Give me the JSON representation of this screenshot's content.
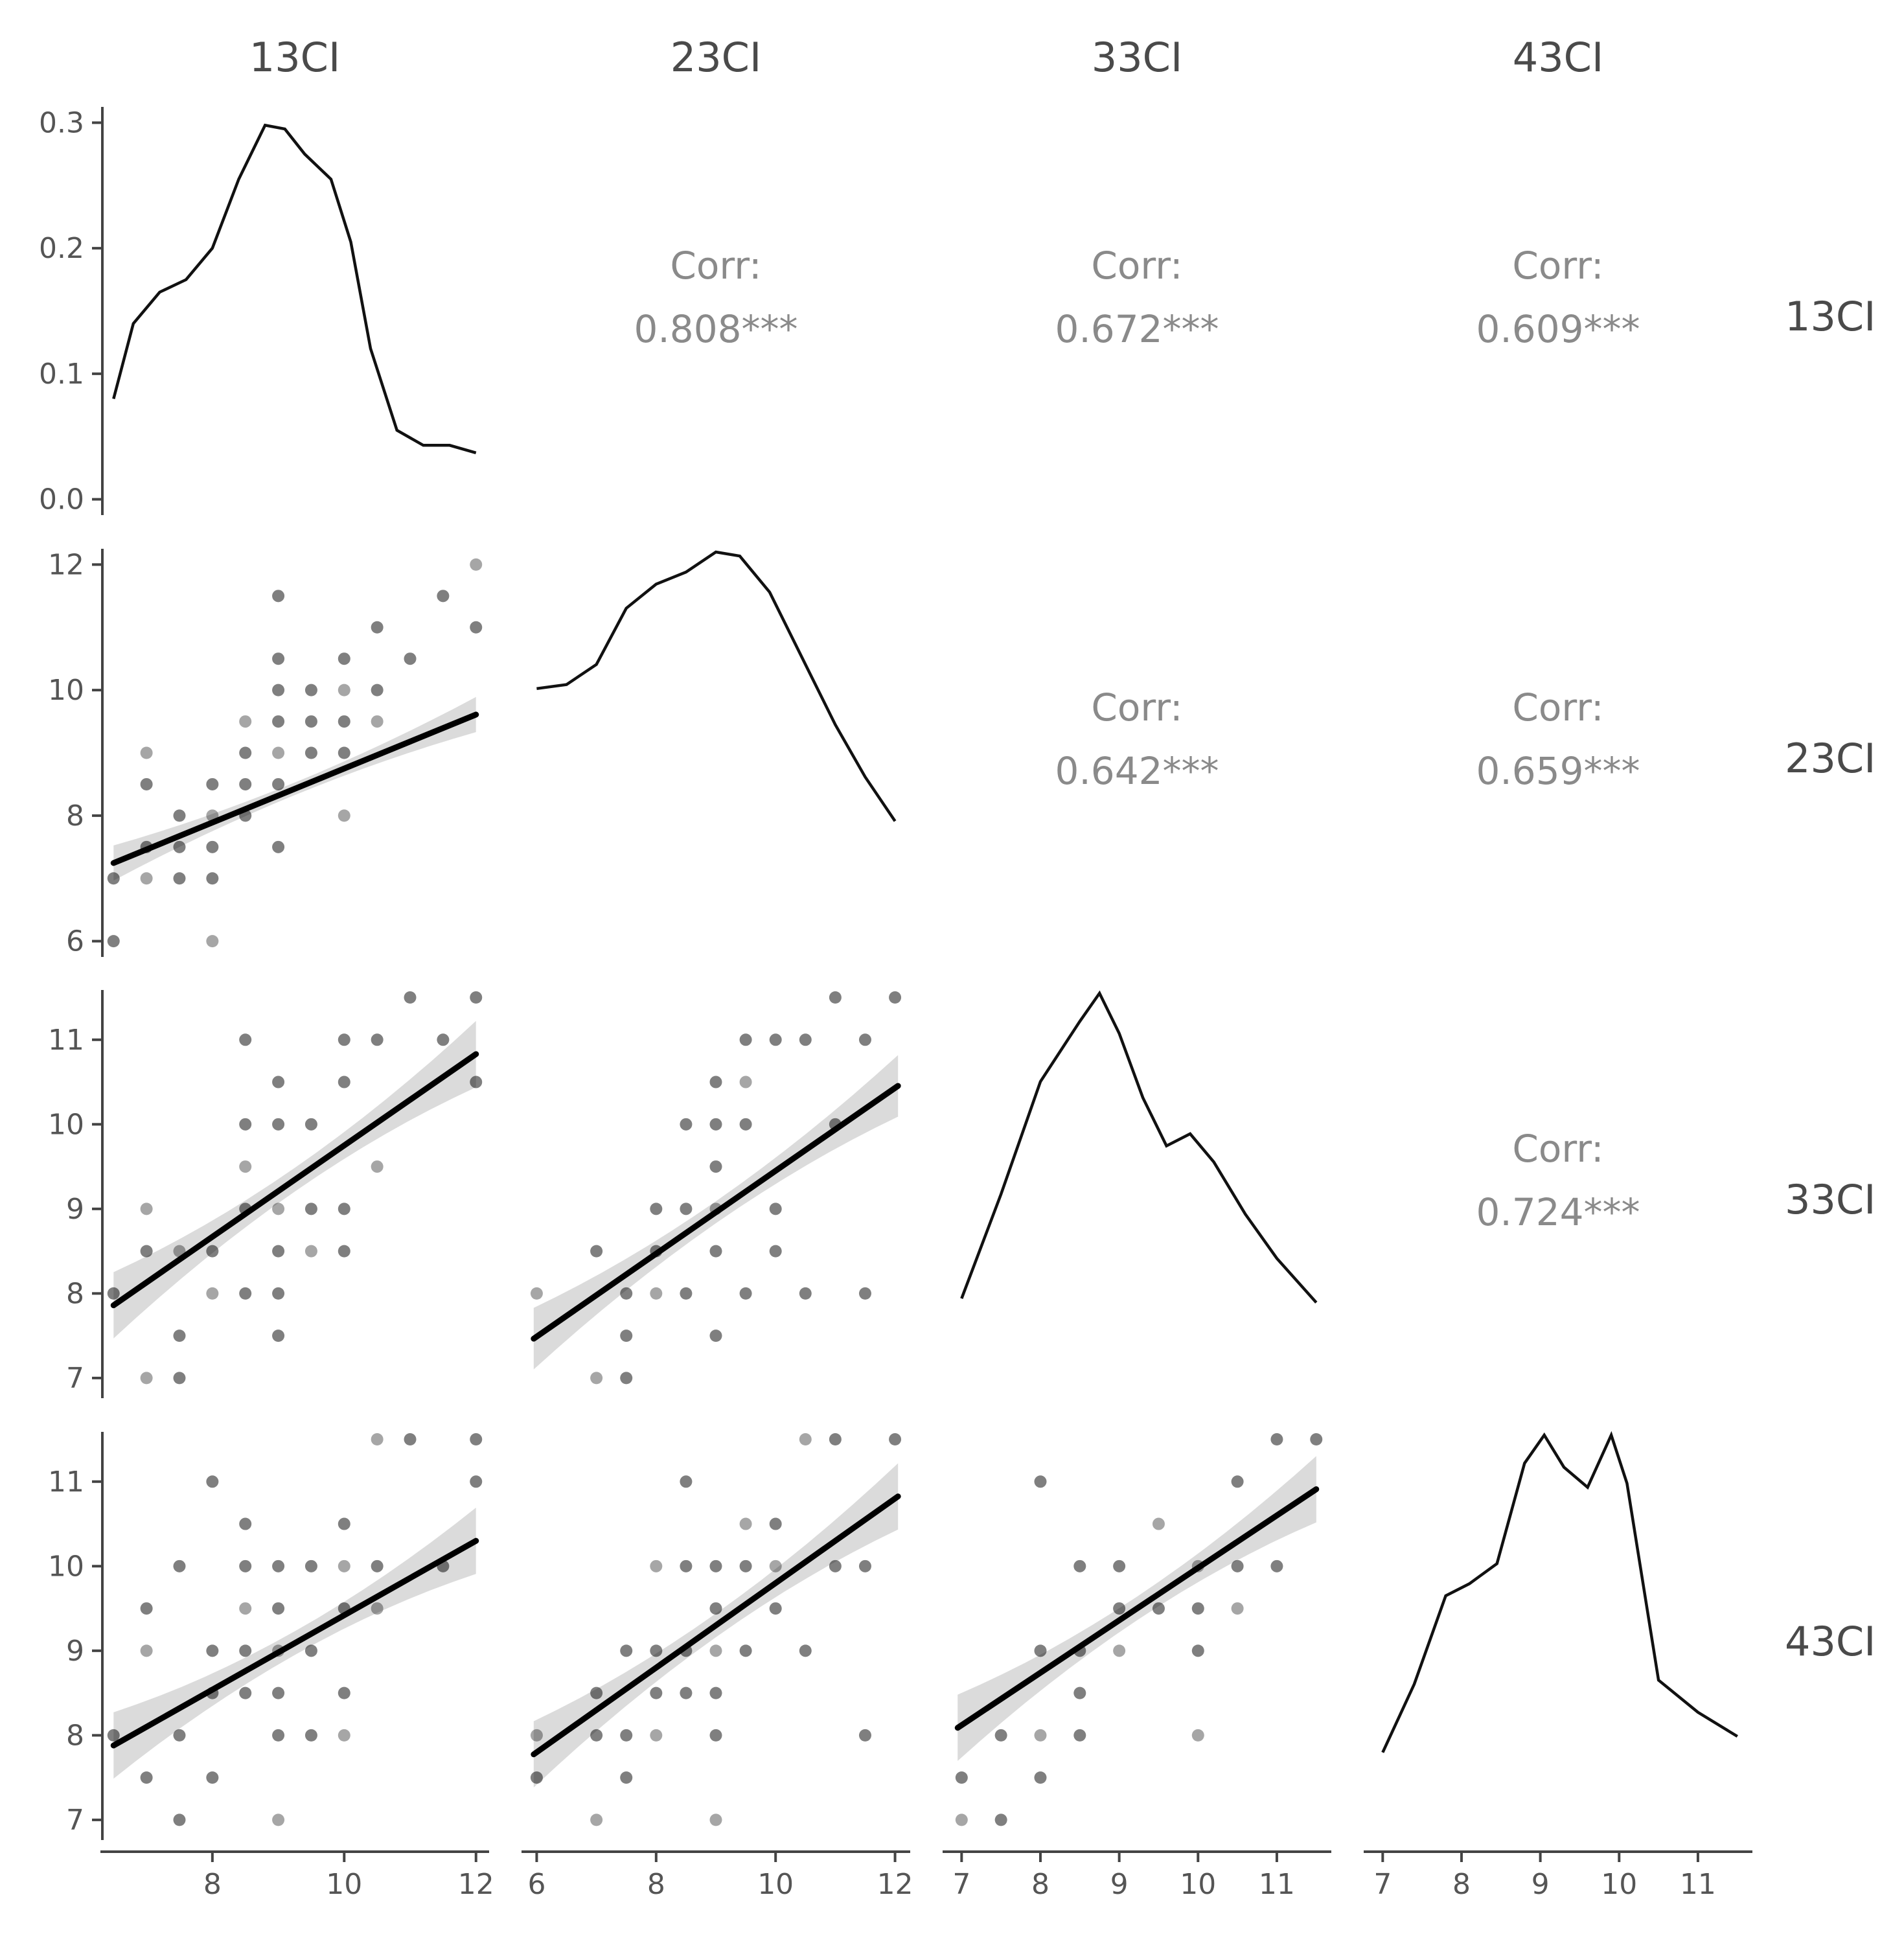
{
  "chart_data": {
    "type": "scatter-matrix",
    "variables": [
      "13CI",
      "23CI",
      "33CI",
      "43CI"
    ],
    "corr_label": "Corr:",
    "correlations": [
      {
        "row": 0,
        "col": 1,
        "value": "0.808***"
      },
      {
        "row": 0,
        "col": 2,
        "value": "0.672***"
      },
      {
        "row": 0,
        "col": 3,
        "value": "0.609***"
      },
      {
        "row": 1,
        "col": 2,
        "value": "0.642***"
      },
      {
        "row": 1,
        "col": 3,
        "value": "0.659***"
      },
      {
        "row": 2,
        "col": 3,
        "value": "0.724***"
      }
    ],
    "x_ranges": [
      [
        6.35,
        12.15
      ],
      [
        5.8,
        12.2
      ],
      [
        6.8,
        11.65
      ],
      [
        6.8,
        11.65
      ]
    ],
    "y_ranges": [
      [
        -0.01,
        0.31
      ],
      [
        5.8,
        12.2
      ],
      [
        6.8,
        11.55
      ],
      [
        6.8,
        11.55
      ]
    ],
    "x_ticks": [
      [
        "8",
        "10",
        "12"
      ],
      [
        "6",
        "8",
        "10",
        "12"
      ],
      [
        "7",
        "8",
        "9",
        "10",
        "11"
      ],
      [
        "7",
        "8",
        "9",
        "10",
        "11"
      ]
    ],
    "y_ticks": [
      [
        "0.0",
        "0.1",
        "0.2",
        "0.3"
      ],
      [
        "6",
        "8",
        "10",
        "12"
      ],
      [
        "7",
        "8",
        "9",
        "10",
        "11"
      ],
      [
        "7",
        "8",
        "9",
        "10",
        "11"
      ]
    ],
    "densities": [
      [
        [
          6.5,
          0.08
        ],
        [
          6.8,
          0.14
        ],
        [
          7.2,
          0.165
        ],
        [
          7.6,
          0.175
        ],
        [
          8.0,
          0.2
        ],
        [
          8.4,
          0.255
        ],
        [
          8.8,
          0.298
        ],
        [
          9.1,
          0.295
        ],
        [
          9.4,
          0.275
        ],
        [
          9.8,
          0.255
        ],
        [
          10.1,
          0.205
        ],
        [
          10.4,
          0.12
        ],
        [
          10.8,
          0.055
        ],
        [
          11.2,
          0.043
        ],
        [
          11.6,
          0.043
        ],
        [
          12.0,
          0.037
        ]
      ],
      [
        [
          6.0,
          0.66
        ],
        [
          6.5,
          0.67
        ],
        [
          7.0,
          0.72
        ],
        [
          7.5,
          0.86
        ],
        [
          8.0,
          0.92
        ],
        [
          8.5,
          0.95
        ],
        [
          9.0,
          1.0
        ],
        [
          9.4,
          0.99
        ],
        [
          9.9,
          0.9
        ],
        [
          10.5,
          0.72
        ],
        [
          11.0,
          0.57
        ],
        [
          11.5,
          0.44
        ],
        [
          12.0,
          0.33
        ]
      ],
      [
        [
          7.0,
          0.24
        ],
        [
          7.5,
          0.5
        ],
        [
          8.0,
          0.78
        ],
        [
          8.5,
          0.93
        ],
        [
          8.75,
          1.0
        ],
        [
          9.0,
          0.9
        ],
        [
          9.3,
          0.74
        ],
        [
          9.6,
          0.62
        ],
        [
          9.9,
          0.65
        ],
        [
          10.2,
          0.58
        ],
        [
          10.6,
          0.45
        ],
        [
          11.0,
          0.34
        ],
        [
          11.5,
          0.23
        ]
      ],
      [
        [
          7.0,
          0.21
        ],
        [
          7.4,
          0.38
        ],
        [
          7.8,
          0.6
        ],
        [
          8.1,
          0.63
        ],
        [
          8.45,
          0.68
        ],
        [
          8.8,
          0.93
        ],
        [
          9.05,
          1.0
        ],
        [
          9.3,
          0.92
        ],
        [
          9.6,
          0.87
        ],
        [
          9.9,
          1.0
        ],
        [
          10.1,
          0.88
        ],
        [
          10.5,
          0.39
        ],
        [
          11.0,
          0.31
        ],
        [
          11.5,
          0.25
        ]
      ]
    ],
    "scatter": {
      "1-0": [
        [
          6.5,
          6
        ],
        [
          6.5,
          7
        ],
        [
          7,
          8.5
        ],
        [
          7,
          9
        ],
        [
          7,
          7.5
        ],
        [
          7.5,
          7.5
        ],
        [
          7.5,
          8
        ],
        [
          7.5,
          7
        ],
        [
          8,
          7
        ],
        [
          8,
          6
        ],
        [
          8,
          7.5
        ],
        [
          8,
          8
        ],
        [
          8,
          8.5
        ],
        [
          8.5,
          8.5
        ],
        [
          8.5,
          9
        ],
        [
          8.5,
          9.5
        ],
        [
          8.5,
          8
        ],
        [
          9,
          9
        ],
        [
          9,
          9.5
        ],
        [
          9,
          10
        ],
        [
          9,
          10.5
        ],
        [
          9,
          11.5
        ],
        [
          9,
          8.5
        ],
        [
          9,
          7.5
        ],
        [
          9.5,
          9
        ],
        [
          9.5,
          9.5
        ],
        [
          9.5,
          10
        ],
        [
          10,
          9.5
        ],
        [
          10,
          10
        ],
        [
          10,
          10.5
        ],
        [
          10,
          9
        ],
        [
          10,
          8
        ],
        [
          10.5,
          9.5
        ],
        [
          10.5,
          11
        ],
        [
          10.5,
          10
        ],
        [
          11,
          10.5
        ],
        [
          11.5,
          11.5
        ],
        [
          12,
          11
        ],
        [
          12,
          12
        ],
        [
          7,
          7
        ]
      ],
      "2-0": [
        [
          6.5,
          8
        ],
        [
          7,
          9
        ],
        [
          7,
          8.5
        ],
        [
          7,
          7
        ],
        [
          7.5,
          8.5
        ],
        [
          7.5,
          7.5
        ],
        [
          7.5,
          7
        ],
        [
          8,
          8
        ],
        [
          8,
          8.5
        ],
        [
          8.5,
          9
        ],
        [
          8.5,
          10
        ],
        [
          8.5,
          11
        ],
        [
          8.5,
          9.5
        ],
        [
          8.5,
          8
        ],
        [
          9,
          10
        ],
        [
          9,
          9
        ],
        [
          9,
          8.5
        ],
        [
          9,
          8
        ],
        [
          9,
          7.5
        ],
        [
          9,
          10.5
        ],
        [
          9.5,
          9
        ],
        [
          9.5,
          8.5
        ],
        [
          9.5,
          10
        ],
        [
          10,
          10.5
        ],
        [
          10,
          11
        ],
        [
          10,
          9
        ],
        [
          10,
          8.5
        ],
        [
          10.5,
          9.5
        ],
        [
          10.5,
          11
        ],
        [
          11,
          11.5
        ],
        [
          11.5,
          11
        ],
        [
          12,
          11.5
        ],
        [
          12,
          10.5
        ]
      ],
      "2-1": [
        [
          6,
          8
        ],
        [
          7,
          8.5
        ],
        [
          7,
          7
        ],
        [
          7.5,
          7
        ],
        [
          7.5,
          7.5
        ],
        [
          7.5,
          8
        ],
        [
          8,
          9
        ],
        [
          8,
          8.5
        ],
        [
          8.5,
          10
        ],
        [
          8.5,
          9
        ],
        [
          8.5,
          8
        ],
        [
          9,
          10
        ],
        [
          9,
          10.5
        ],
        [
          9,
          9.5
        ],
        [
          9,
          8.5
        ],
        [
          9,
          7.5
        ],
        [
          9.5,
          10
        ],
        [
          9.5,
          10.5
        ],
        [
          9.5,
          11
        ],
        [
          9.5,
          8
        ],
        [
          10,
          9
        ],
        [
          10,
          8.5
        ],
        [
          10,
          11
        ],
        [
          10.5,
          11
        ],
        [
          10.5,
          8
        ],
        [
          11,
          10
        ],
        [
          11,
          11.5
        ],
        [
          11.5,
          11
        ],
        [
          11.5,
          8
        ],
        [
          12,
          11.5
        ],
        [
          9,
          9
        ],
        [
          8,
          8
        ]
      ],
      "3-0": [
        [
          6.5,
          8
        ],
        [
          7,
          9
        ],
        [
          7,
          9.5
        ],
        [
          7,
          7.5
        ],
        [
          7.5,
          8
        ],
        [
          7.5,
          10
        ],
        [
          7.5,
          7
        ],
        [
          8,
          9
        ],
        [
          8,
          11
        ],
        [
          8,
          8.5
        ],
        [
          8,
          7.5
        ],
        [
          8.5,
          9
        ],
        [
          8.5,
          9.5
        ],
        [
          8.5,
          10
        ],
        [
          8.5,
          10.5
        ],
        [
          8.5,
          8.5
        ],
        [
          9,
          9
        ],
        [
          9,
          9.5
        ],
        [
          9,
          10
        ],
        [
          9,
          8.5
        ],
        [
          9,
          8
        ],
        [
          9,
          7
        ],
        [
          9.5,
          9
        ],
        [
          9.5,
          10
        ],
        [
          9.5,
          8
        ],
        [
          10,
          10
        ],
        [
          10,
          9.5
        ],
        [
          10,
          10.5
        ],
        [
          10,
          8.5
        ],
        [
          10,
          8
        ],
        [
          10.5,
          9.5
        ],
        [
          10.5,
          10
        ],
        [
          10.5,
          11.5
        ],
        [
          11,
          11.5
        ],
        [
          11.5,
          10
        ],
        [
          12,
          11
        ],
        [
          12,
          11.5
        ]
      ],
      "3-1": [
        [
          6,
          7.5
        ],
        [
          6,
          8
        ],
        [
          7,
          7
        ],
        [
          7,
          8.5
        ],
        [
          7.5,
          8
        ],
        [
          7.5,
          9
        ],
        [
          7.5,
          7.5
        ],
        [
          8,
          8
        ],
        [
          8,
          9
        ],
        [
          8,
          8.5
        ],
        [
          8,
          10
        ],
        [
          8.5,
          9
        ],
        [
          8.5,
          10
        ],
        [
          8.5,
          11
        ],
        [
          8.5,
          8.5
        ],
        [
          9,
          9
        ],
        [
          9,
          9.5
        ],
        [
          9,
          10
        ],
        [
          9,
          8.5
        ],
        [
          9,
          8
        ],
        [
          9,
          7
        ],
        [
          9.5,
          10
        ],
        [
          9.5,
          9
        ],
        [
          9.5,
          10.5
        ],
        [
          10,
          10
        ],
        [
          10,
          9.5
        ],
        [
          10,
          10.5
        ],
        [
          10.5,
          9
        ],
        [
          10.5,
          11.5
        ],
        [
          11,
          11.5
        ],
        [
          11,
          10
        ],
        [
          11.5,
          10
        ],
        [
          11.5,
          8
        ],
        [
          12,
          11.5
        ],
        [
          7,
          8
        ]
      ],
      "3-2": [
        [
          7,
          7.5
        ],
        [
          7,
          7
        ],
        [
          7.5,
          8
        ],
        [
          7.5,
          7
        ],
        [
          8,
          9
        ],
        [
          8,
          8
        ],
        [
          8,
          7.5
        ],
        [
          8,
          11
        ],
        [
          8.5,
          10
        ],
        [
          8.5,
          9
        ],
        [
          8.5,
          8.5
        ],
        [
          8.5,
          8
        ],
        [
          9,
          9
        ],
        [
          9,
          9.5
        ],
        [
          9,
          10
        ],
        [
          9.5,
          9.5
        ],
        [
          9.5,
          10.5
        ],
        [
          10,
          10
        ],
        [
          10,
          9
        ],
        [
          10,
          9.5
        ],
        [
          10,
          8
        ],
        [
          10.5,
          9.5
        ],
        [
          10.5,
          10
        ],
        [
          10.5,
          11
        ],
        [
          11,
          10
        ],
        [
          11,
          11.5
        ],
        [
          11.5,
          11.5
        ]
      ]
    },
    "regressions": {
      "1-0": [
        0.43,
        0.78,
        4.45,
        0.1
      ],
      "2-0": [
        0.54,
        0.535,
        4.35,
        0.14
      ],
      "2-1": [
        0.49,
        0.485,
        4.55,
        0.13
      ],
      "3-0": [
        0.44,
        0.475,
        5.02,
        0.14
      ],
      "3-1": [
        0.5,
        0.475,
        4.8,
        0.14
      ],
      "3-2": [
        0.62,
        0.67,
        3.78,
        0.14
      ]
    }
  }
}
